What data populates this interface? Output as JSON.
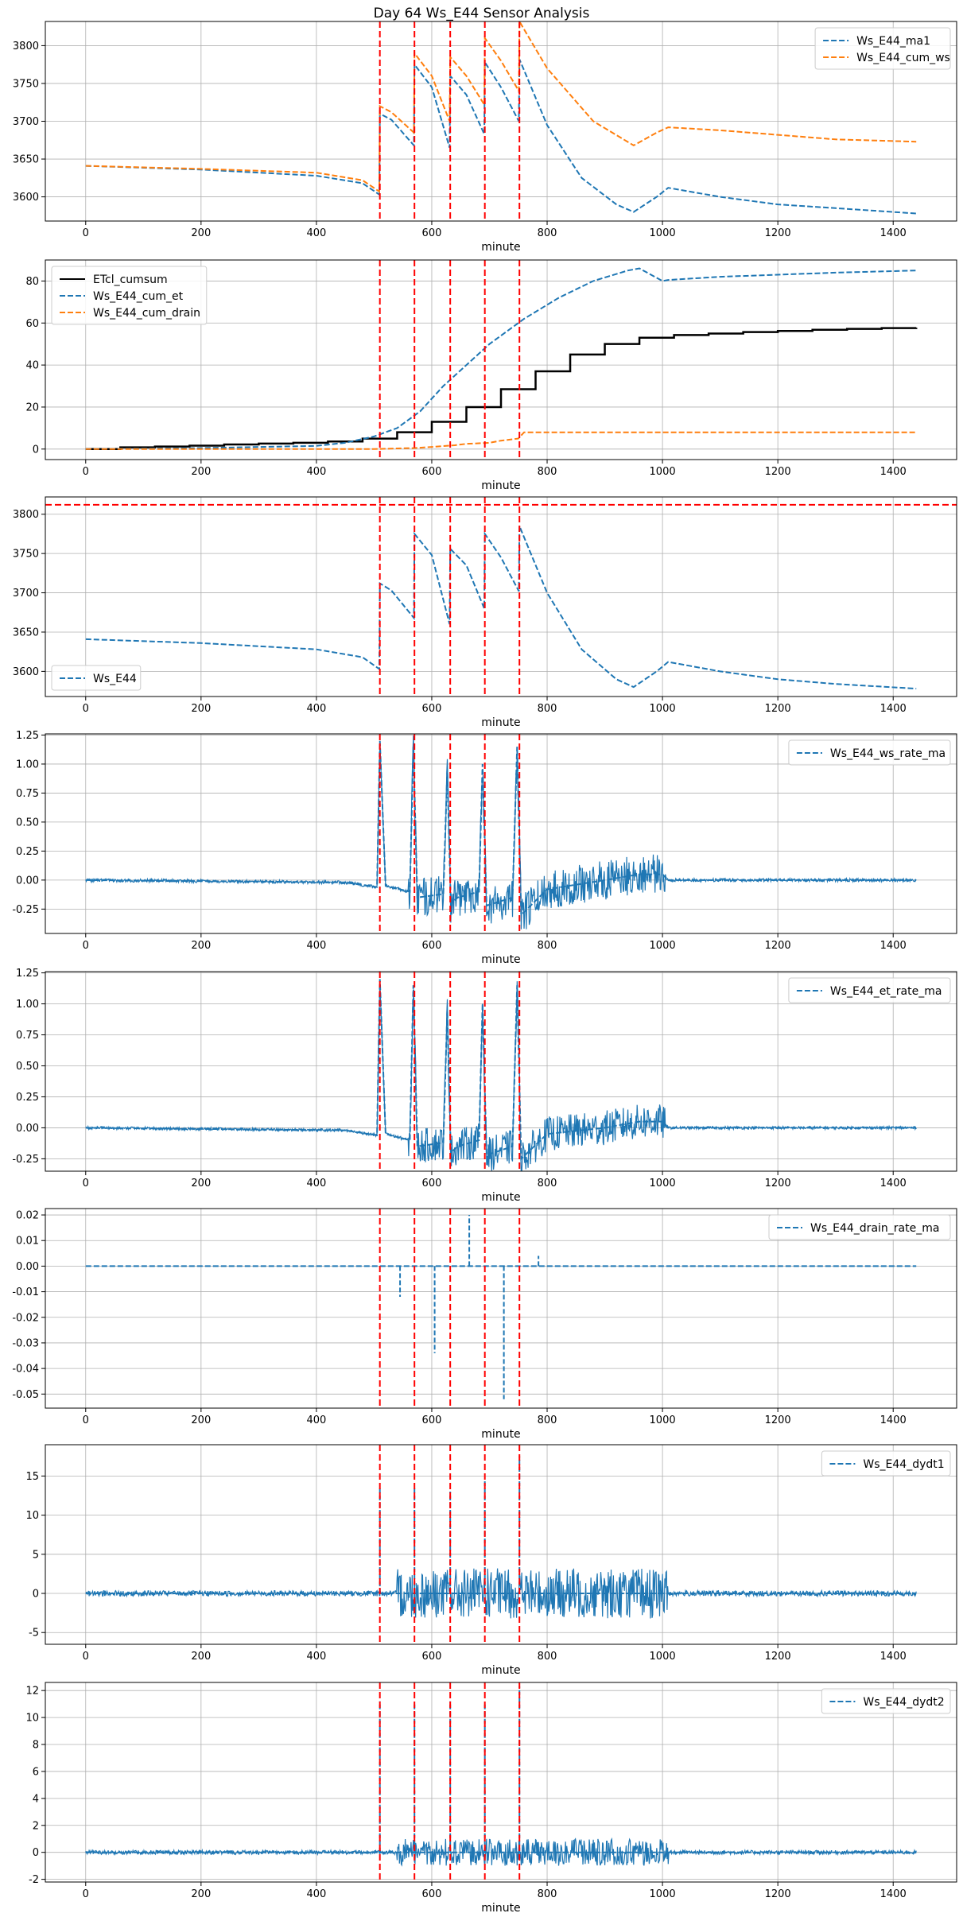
{
  "chart_data": {
    "title": "Day 64 Ws_E44 Sensor Analysis",
    "event_lines": [
      510,
      570,
      632,
      692,
      752
    ],
    "event_color": "#ff0000",
    "panels": [
      {
        "type": "line",
        "xlabel": "minute",
        "xlim": [
          -70,
          1510
        ],
        "xticks": [
          0,
          200,
          400,
          600,
          800,
          1000,
          1200,
          1400
        ],
        "ylim": [
          3568,
          3832
        ],
        "yticks": [
          3600,
          3650,
          3700,
          3750,
          3800
        ],
        "legend_position": "top-right",
        "series": [
          {
            "name": "Ws_E44_ma1",
            "color": "#1f77b4",
            "style": "dashed",
            "width": 2,
            "x": [
              0,
              200,
              400,
              480,
              509,
              510,
              530,
              569,
              570,
              600,
              631,
              632,
              660,
              691,
              692,
              720,
              751,
              752,
              800,
              860,
              920,
              950,
              990,
              1010,
              1100,
              1200,
              1300,
              1440
            ],
            "y": [
              3641,
              3636,
              3628,
              3618,
              3603,
              3710,
              3702,
              3668,
              3775,
              3745,
              3665,
              3760,
              3735,
              3683,
              3778,
              3745,
              3700,
              3782,
              3695,
              3625,
              3590,
              3580,
              3600,
              3612,
              3600,
              3590,
              3585,
              3578
            ]
          },
          {
            "name": "Ws_E44_cum_ws",
            "color": "#ff7f0e",
            "style": "dashed",
            "width": 2,
            "x": [
              0,
              200,
              400,
              480,
              509,
              510,
              530,
              569,
              570,
              600,
              631,
              632,
              660,
              691,
              692,
              720,
              751,
              752,
              800,
              880,
              950,
              990,
              1010,
              1100,
              1200,
              1300,
              1440
            ],
            "y": [
              3641,
              3637,
              3632,
              3622,
              3607,
              3720,
              3712,
              3685,
              3790,
              3760,
              3700,
              3785,
              3760,
              3722,
              3810,
              3780,
              3740,
              3832,
              3770,
              3700,
              3668,
              3685,
              3692,
              3688,
              3682,
              3676,
              3673
            ]
          }
        ]
      },
      {
        "type": "line",
        "xlabel": "minute",
        "xlim": [
          -70,
          1510
        ],
        "xticks": [
          0,
          200,
          400,
          600,
          800,
          1000,
          1200,
          1400
        ],
        "ylim": [
          -5,
          90
        ],
        "yticks": [
          0,
          20,
          40,
          60,
          80
        ],
        "legend_position": "top-left",
        "series": [
          {
            "name": "ETcl_cumsum",
            "color": "#000000",
            "style": "step",
            "width": 2.5,
            "x": [
              0,
              60,
              120,
              180,
              240,
              300,
              360,
              420,
              480,
              540,
              600,
              660,
              720,
              780,
              840,
              900,
              960,
              1020,
              1080,
              1140,
              1200,
              1260,
              1320,
              1380,
              1440
            ],
            "y": [
              0,
              0.8,
              1.2,
              1.6,
              2.2,
              2.6,
              3.0,
              3.6,
              5.0,
              8.0,
              13.0,
              20.0,
              28.5,
              37.0,
              45.0,
              50.0,
              53.0,
              54.3,
              55.0,
              55.7,
              56.2,
              56.8,
              57.2,
              57.6,
              57.8
            ]
          },
          {
            "name": "Ws_E44_cum_et",
            "color": "#1f77b4",
            "style": "dashed",
            "width": 2,
            "x": [
              0,
              200,
              400,
              450,
              500,
              540,
              580,
              620,
              660,
              700,
              760,
              820,
              880,
              940,
              960,
              1000,
              1010,
              1100,
              1200,
              1300,
              1440
            ],
            "y": [
              0,
              0.5,
              1.5,
              3,
              6,
              10,
              18,
              30,
              40,
              50,
              62,
              72,
              80,
              85,
              86,
              80,
              80.5,
              82,
              83,
              84,
              85
            ]
          },
          {
            "name": "Ws_E44_cum_drain",
            "color": "#ff7f0e",
            "style": "dashed",
            "width": 2,
            "x": [
              0,
              500,
              540,
              570,
              600,
              640,
              660,
              700,
              720,
              750,
              760,
              1440
            ],
            "y": [
              0,
              0,
              0.3,
              0.5,
              1.0,
              1.8,
              2.5,
              3.0,
              4.0,
              5.0,
              8.0,
              8.0
            ]
          }
        ]
      },
      {
        "type": "line",
        "xlabel": "minute",
        "xlim": [
          -70,
          1510
        ],
        "xticks": [
          0,
          200,
          400,
          600,
          800,
          1000,
          1200,
          1400
        ],
        "ylim": [
          3568,
          3822
        ],
        "yticks": [
          3600,
          3650,
          3700,
          3750,
          3800
        ],
        "legend_position": "bottom-left",
        "hline": 3812,
        "series": [
          {
            "name": "Ws_E44",
            "color": "#1f77b4",
            "style": "dashed",
            "width": 2,
            "x": [
              0,
              200,
              400,
              480,
              509,
              510,
              530,
              569,
              570,
              600,
              631,
              632,
              660,
              691,
              692,
              720,
              751,
              752,
              800,
              860,
              920,
              950,
              990,
              1010,
              1100,
              1200,
              1300,
              1440
            ],
            "y": [
              3641,
              3636,
              3628,
              3618,
              3603,
              3712,
              3703,
              3668,
              3775,
              3748,
              3660,
              3756,
              3735,
              3680,
              3775,
              3745,
              3702,
              3785,
              3700,
              3628,
              3590,
              3580,
              3600,
              3612,
              3600,
              3590,
              3584,
              3578
            ]
          }
        ]
      },
      {
        "type": "line",
        "xlabel": "minute",
        "xlim": [
          -70,
          1510
        ],
        "xticks": [
          0,
          200,
          400,
          600,
          800,
          1000,
          1200,
          1400
        ],
        "ylim": [
          -0.46,
          1.26
        ],
        "yticks": [
          -0.25,
          0.0,
          0.25,
          0.5,
          0.75,
          1.0,
          1.25
        ],
        "yprecision": 2,
        "legend_position": "top-right",
        "series": [
          {
            "name": "Ws_E44_ws_rate_ma",
            "color": "#1f77b4",
            "style": "dashed",
            "width": 2,
            "x": [
              0,
              450,
              490,
              505,
              510,
              520,
              545,
              562,
              568,
              575,
              620,
              627,
              633,
              645,
              682,
              688,
              695,
              740,
              748,
              755,
              800,
              900,
              960,
              1000,
              1010,
              1440
            ],
            "y": [
              0,
              -0.02,
              -0.05,
              -0.06,
              1.2,
              -0.05,
              -0.08,
              -0.1,
              1.15,
              -0.15,
              -0.12,
              0.95,
              -0.2,
              -0.15,
              -0.1,
              1.0,
              -0.22,
              -0.15,
              1.15,
              -0.3,
              -0.08,
              0,
              0.05,
              0.05,
              0,
              0
            ]
          }
        ],
        "noise": {
          "from": 560,
          "to": 1005,
          "amplitude": 0.17
        }
      },
      {
        "type": "line",
        "xlabel": "minute",
        "xlim": [
          -70,
          1510
        ],
        "xticks": [
          0,
          200,
          400,
          600,
          800,
          1000,
          1200,
          1400
        ],
        "ylim": [
          -0.35,
          1.26
        ],
        "yticks": [
          -0.25,
          0.0,
          0.25,
          0.5,
          0.75,
          1.0,
          1.25
        ],
        "yprecision": 2,
        "legend_position": "top-right",
        "series": [
          {
            "name": "Ws_E44_et_rate_ma",
            "color": "#1f77b4",
            "style": "dashed",
            "width": 2,
            "x": [
              0,
              450,
              490,
              505,
              510,
              520,
              545,
              562,
              568,
              575,
              620,
              627,
              633,
              645,
              682,
              688,
              695,
              740,
              748,
              755,
              800,
              900,
              960,
              1000,
              1010,
              1440
            ],
            "y": [
              0,
              -0.02,
              -0.05,
              -0.06,
              1.2,
              -0.05,
              -0.08,
              -0.1,
              1.15,
              -0.15,
              -0.12,
              0.95,
              -0.2,
              -0.15,
              -0.1,
              1.0,
              -0.22,
              -0.15,
              1.15,
              -0.25,
              -0.05,
              0,
              0.05,
              0.05,
              0,
              0
            ]
          }
        ],
        "noise": {
          "from": 560,
          "to": 1005,
          "amplitude": 0.14
        }
      },
      {
        "type": "line",
        "xlabel": "minute",
        "xlim": [
          -70,
          1510
        ],
        "xticks": [
          0,
          200,
          400,
          600,
          800,
          1000,
          1200,
          1400
        ],
        "ylim": [
          -0.0555,
          0.0225
        ],
        "yticks": [
          -0.05,
          -0.04,
          -0.03,
          -0.02,
          -0.01,
          0.0,
          0.01,
          0.02
        ],
        "yprecision": 2,
        "legend_position": "top-right",
        "series": [
          {
            "name": "Ws_E44_drain_rate_ma",
            "color": "#1f77b4",
            "style": "dashed",
            "width": 2,
            "x": [
              0,
              1440
            ],
            "y": [
              0,
              0
            ]
          }
        ],
        "spikes": [
          {
            "x": 545,
            "y": -0.012
          },
          {
            "x": 605,
            "y": -0.034
          },
          {
            "x": 665,
            "y": 0.02
          },
          {
            "x": 725,
            "y": -0.052
          },
          {
            "x": 785,
            "y": 0.004
          }
        ]
      },
      {
        "type": "line",
        "xlabel": "minute",
        "xlim": [
          -70,
          1510
        ],
        "xticks": [
          0,
          200,
          400,
          600,
          800,
          1000,
          1200,
          1400
        ],
        "ylim": [
          -6.5,
          19
        ],
        "yticks": [
          -5,
          0,
          5,
          10,
          15
        ],
        "legend_position": "top-right",
        "series": [
          {
            "name": "Ws_E44_dydt1",
            "color": "#1f77b4",
            "style": "dashed",
            "width": 2,
            "x": [
              0,
              1440
            ],
            "y": [
              0,
              0
            ]
          }
        ],
        "noise": {
          "from": 540,
          "to": 1010,
          "amplitude": 3.2,
          "quiet_amplitude": 0.35
        },
        "spikes": [
          {
            "x": 510,
            "y": 13.5
          },
          {
            "x": 570,
            "y": 13.5
          },
          {
            "x": 632,
            "y": 13.0
          },
          {
            "x": 692,
            "y": 14.5
          },
          {
            "x": 752,
            "y": 17.5
          }
        ]
      },
      {
        "type": "line",
        "xlabel": "minute",
        "xlim": [
          -70,
          1510
        ],
        "xticks": [
          0,
          200,
          400,
          600,
          800,
          1000,
          1200,
          1400
        ],
        "ylim": [
          -2.2,
          12.6
        ],
        "yticks": [
          -2,
          0,
          2,
          4,
          6,
          8,
          10,
          12
        ],
        "legend_position": "top-right",
        "series": [
          {
            "name": "Ws_E44_dydt2",
            "color": "#1f77b4",
            "style": "dashed",
            "width": 2,
            "x": [
              0,
              1440
            ],
            "y": [
              0,
              0
            ]
          }
        ],
        "noise": {
          "from": 540,
          "to": 1010,
          "amplitude": 1.0,
          "quiet_amplitude": 0.15
        },
        "spikes": [
          {
            "x": 510,
            "y": 11.2
          },
          {
            "x": 570,
            "y": 11.0
          },
          {
            "x": 632,
            "y": 11.2
          },
          {
            "x": 692,
            "y": 11.0
          },
          {
            "x": 752,
            "y": 12.3
          }
        ]
      }
    ]
  }
}
